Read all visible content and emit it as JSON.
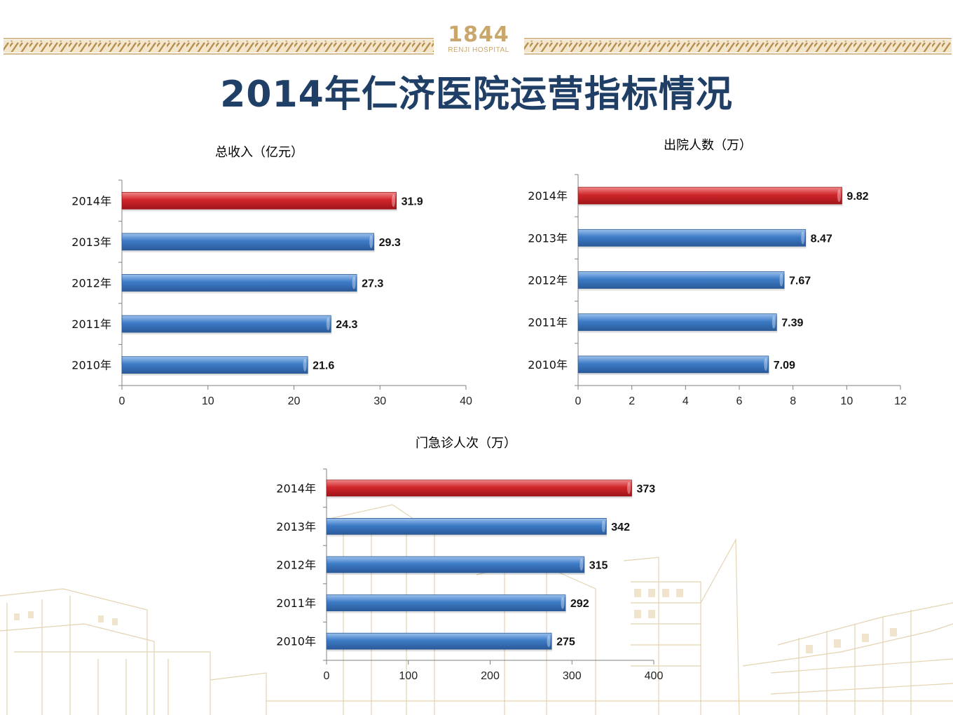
{
  "header": {
    "logo_year": "1844",
    "logo_name": "RENJI HOSPITAL",
    "title": "2014年仁济医院运营指标情况"
  },
  "colors": {
    "highlight_bar": "#d0262b",
    "normal_bar": "#3d7bc6",
    "gold": "#c9a66b",
    "title": "#1f3f66"
  },
  "chart_data": [
    {
      "type": "bar",
      "orientation": "horizontal",
      "title": "总收入（亿元）",
      "categories": [
        "2014年",
        "2013年",
        "2012年",
        "2011年",
        "2010年"
      ],
      "values": [
        31.9,
        29.3,
        27.3,
        24.3,
        21.6
      ],
      "value_labels": [
        "31.9",
        "29.3",
        "27.3",
        "24.3",
        "21.6"
      ],
      "highlight_index": 0,
      "xlim": [
        0,
        40
      ],
      "xticks": [
        0,
        10,
        20,
        30,
        40
      ],
      "grid": false,
      "legend": "none"
    },
    {
      "type": "bar",
      "orientation": "horizontal",
      "title": "出院人数（万）",
      "categories": [
        "2014年",
        "2013年",
        "2012年",
        "2011年",
        "2010年"
      ],
      "values": [
        9.82,
        8.47,
        7.67,
        7.39,
        7.09
      ],
      "value_labels": [
        "9.82",
        "8.47",
        "7.67",
        "7.39",
        "7.09"
      ],
      "highlight_index": 0,
      "xlim": [
        0,
        12
      ],
      "xticks": [
        0,
        2,
        4,
        6,
        8,
        10,
        12
      ],
      "grid": false,
      "legend": "none"
    },
    {
      "type": "bar",
      "orientation": "horizontal",
      "title": "门急诊人次（万）",
      "categories": [
        "2014年",
        "2013年",
        "2012年",
        "2011年",
        "2010年"
      ],
      "values": [
        373,
        342,
        315,
        292,
        275
      ],
      "value_labels": [
        "373",
        "342",
        "315",
        "292",
        "275"
      ],
      "highlight_index": 0,
      "xlim": [
        0,
        400
      ],
      "xticks": [
        0,
        100,
        200,
        300,
        400
      ],
      "grid": false,
      "legend": "none"
    }
  ]
}
